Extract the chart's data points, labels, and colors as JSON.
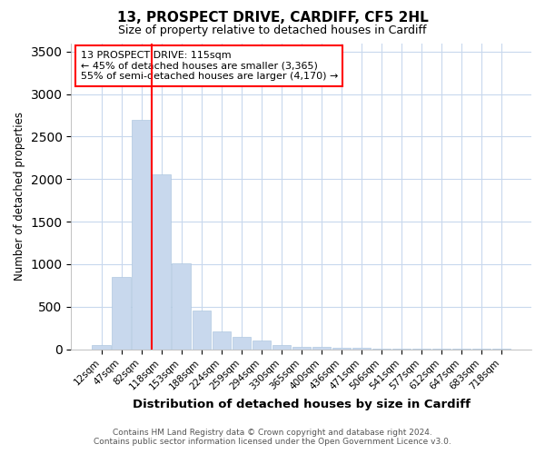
{
  "title1": "13, PROSPECT DRIVE, CARDIFF, CF5 2HL",
  "title2": "Size of property relative to detached houses in Cardiff",
  "xlabel": "Distribution of detached houses by size in Cardiff",
  "ylabel": "Number of detached properties",
  "categories": [
    "12sqm",
    "47sqm",
    "82sqm",
    "118sqm",
    "153sqm",
    "188sqm",
    "224sqm",
    "259sqm",
    "294sqm",
    "330sqm",
    "365sqm",
    "400sqm",
    "436sqm",
    "471sqm",
    "506sqm",
    "541sqm",
    "577sqm",
    "612sqm",
    "647sqm",
    "683sqm",
    "718sqm"
  ],
  "values": [
    50,
    850,
    2700,
    2060,
    1010,
    450,
    210,
    150,
    100,
    50,
    30,
    30,
    20,
    15,
    5,
    2,
    1,
    1,
    1,
    1,
    1
  ],
  "bar_color": "#c8d8ed",
  "bar_edge_color": "#b0c8e0",
  "red_line_x": 2.5,
  "annotation_title": "13 PROSPECT DRIVE: 115sqm",
  "annotation_line1": "← 45% of detached houses are smaller (3,365)",
  "annotation_line2": "55% of semi-detached houses are larger (4,170) →",
  "ylim": [
    0,
    3600
  ],
  "yticks": [
    0,
    500,
    1000,
    1500,
    2000,
    2500,
    3000,
    3500
  ],
  "footer1": "Contains HM Land Registry data © Crown copyright and database right 2024.",
  "footer2": "Contains public sector information licensed under the Open Government Licence v3.0.",
  "bg_color": "#ffffff",
  "plot_bg_color": "#ffffff",
  "grid_color": "#c8d8ed"
}
